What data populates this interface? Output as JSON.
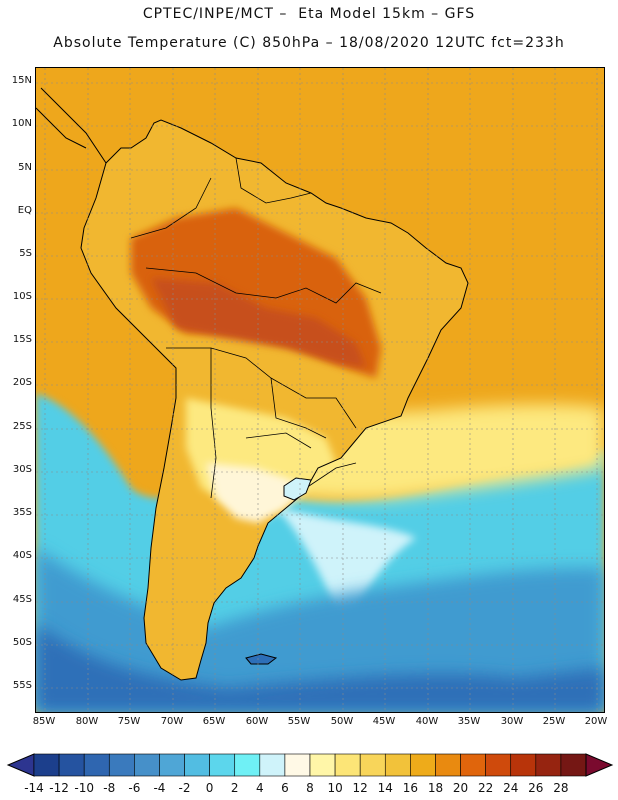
{
  "title_line1": "CPTEC/INPE/MCT –  Eta Model 15km – GFS",
  "title_line2": "Absolute Temperature (C) 850hPa – 18/08/2020 12UTC fct=233h",
  "lat_labels": [
    "15N",
    "10N",
    "5N",
    "EQ",
    "5S",
    "10S",
    "15S",
    "20S",
    "25S",
    "30S",
    "35S",
    "40S",
    "45S",
    "50S",
    "55S"
  ],
  "lon_labels": [
    "85W",
    "80W",
    "75W",
    "70W",
    "65W",
    "60W",
    "55W",
    "50W",
    "45W",
    "40W",
    "35W",
    "30W",
    "25W",
    "20W"
  ],
  "colorbar": {
    "labels": [
      "-14",
      "-12",
      "-10",
      "-8",
      "-6",
      "-4",
      "-2",
      "0",
      "2",
      "4",
      "6",
      "8",
      "10",
      "12",
      "14",
      "16",
      "18",
      "20",
      "22",
      "24",
      "26",
      "28"
    ],
    "colors": [
      "#1c3f8c",
      "#2553a0",
      "#2f66b0",
      "#3a7abd",
      "#4690c9",
      "#4fa6d6",
      "#52bde2",
      "#5cd6ec",
      "#6ff0f5",
      "#cff3fa",
      "#fff9e6",
      "#fff6a8",
      "#fce577",
      "#f8d55a",
      "#f2c23a",
      "#eeab1a",
      "#e98a10",
      "#e0650c",
      "#cf4a0c",
      "#b8340a",
      "#962410",
      "#751714"
    ],
    "left_arrow_color": "#2d3590",
    "right_arrow_color": "#7a0a2e"
  },
  "map_colors": {
    "ocean_warm": "#eea71c",
    "ocean_cool": "#52cee6",
    "ocean_cold": "#3f9bd0",
    "ocean_coldest": "#2d6fb8",
    "land_hot": "#d9620f",
    "land_very_hot": "#c7501a",
    "land_warm": "#f1b730",
    "land_mild": "#fde980",
    "land_cool": "#fff6d8",
    "plume_light": "#cff3fa"
  }
}
